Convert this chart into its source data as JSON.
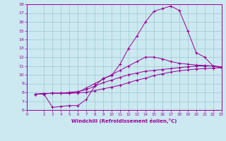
{
  "xlabel": "Windchill (Refroidissement éolien,°C)",
  "bg_color": "#cce8f0",
  "line_color": "#990099",
  "grid_color": "#99cccc",
  "xlim": [
    0,
    23
  ],
  "ylim": [
    6,
    18
  ],
  "xticks": [
    0,
    2,
    3,
    4,
    5,
    6,
    7,
    8,
    9,
    10,
    11,
    12,
    13,
    14,
    15,
    16,
    17,
    18,
    19,
    20,
    21,
    22,
    23
  ],
  "yticks": [
    6,
    7,
    8,
    9,
    10,
    11,
    12,
    13,
    14,
    15,
    16,
    17,
    18
  ],
  "line1_x": [
    1,
    2,
    3,
    4,
    5,
    6,
    7,
    8,
    9,
    10,
    11,
    12,
    13,
    14,
    15,
    16,
    17,
    18,
    19,
    20,
    21,
    22,
    23
  ],
  "line1_y": [
    7.8,
    7.8,
    6.3,
    6.4,
    6.5,
    6.5,
    7.2,
    8.7,
    9.6,
    9.9,
    11.2,
    13.0,
    14.4,
    16.0,
    17.2,
    17.5,
    17.8,
    17.3,
    15.0,
    12.5,
    12.0,
    11.0,
    10.8
  ],
  "line2_x": [
    1,
    2,
    3,
    4,
    5,
    6,
    7,
    8,
    9,
    10,
    11,
    12,
    13,
    14,
    15,
    16,
    17,
    18,
    19,
    20,
    21,
    22,
    23
  ],
  "line2_y": [
    7.8,
    7.85,
    7.9,
    7.9,
    7.9,
    8.0,
    8.5,
    9.0,
    9.5,
    10.0,
    10.5,
    11.0,
    11.5,
    12.0,
    12.0,
    11.8,
    11.5,
    11.3,
    11.2,
    11.1,
    11.05,
    11.0,
    10.8
  ],
  "line3_x": [
    1,
    2,
    3,
    4,
    5,
    6,
    7,
    8,
    9,
    10,
    11,
    12,
    13,
    14,
    15,
    16,
    17,
    18,
    19,
    20,
    21,
    22,
    23
  ],
  "line3_y": [
    7.8,
    7.85,
    7.9,
    7.9,
    8.0,
    8.1,
    8.3,
    8.7,
    9.1,
    9.4,
    9.7,
    10.0,
    10.2,
    10.4,
    10.5,
    10.6,
    10.7,
    10.8,
    10.9,
    11.0,
    11.0,
    11.0,
    10.9
  ],
  "line4_x": [
    1,
    2,
    3,
    4,
    5,
    6,
    7,
    8,
    9,
    10,
    11,
    12,
    13,
    14,
    15,
    16,
    17,
    18,
    19,
    20,
    21,
    22,
    23
  ],
  "line4_y": [
    7.8,
    7.85,
    7.9,
    7.9,
    7.9,
    7.95,
    8.0,
    8.2,
    8.4,
    8.6,
    8.8,
    9.1,
    9.4,
    9.6,
    9.9,
    10.1,
    10.3,
    10.45,
    10.55,
    10.65,
    10.7,
    10.75,
    10.8
  ]
}
